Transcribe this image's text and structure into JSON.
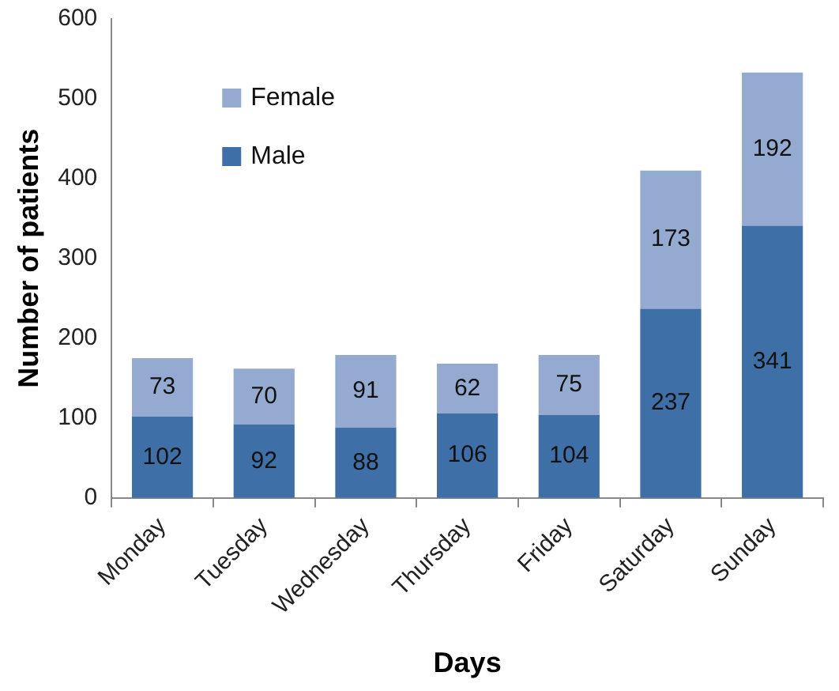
{
  "chart_data": {
    "type": "bar",
    "stacked": true,
    "xlabel": "Days",
    "ylabel": "Number of patients",
    "categories": [
      "Monday",
      "Tuesday",
      "Wednesday",
      "Thursday",
      "Friday",
      "Saturday",
      "Sunday"
    ],
    "series": [
      {
        "name": "Male",
        "color": "#3e6fa6",
        "values": [
          102,
          92,
          88,
          106,
          104,
          237,
          341
        ]
      },
      {
        "name": "Female",
        "color": "#94aad0",
        "values": [
          73,
          70,
          91,
          62,
          75,
          173,
          192
        ]
      }
    ],
    "ylim": [
      0,
      600
    ],
    "yticks": [
      0,
      100,
      200,
      300,
      400,
      500,
      600
    ],
    "grid": false,
    "legend": "top left",
    "data_labels": true
  }
}
